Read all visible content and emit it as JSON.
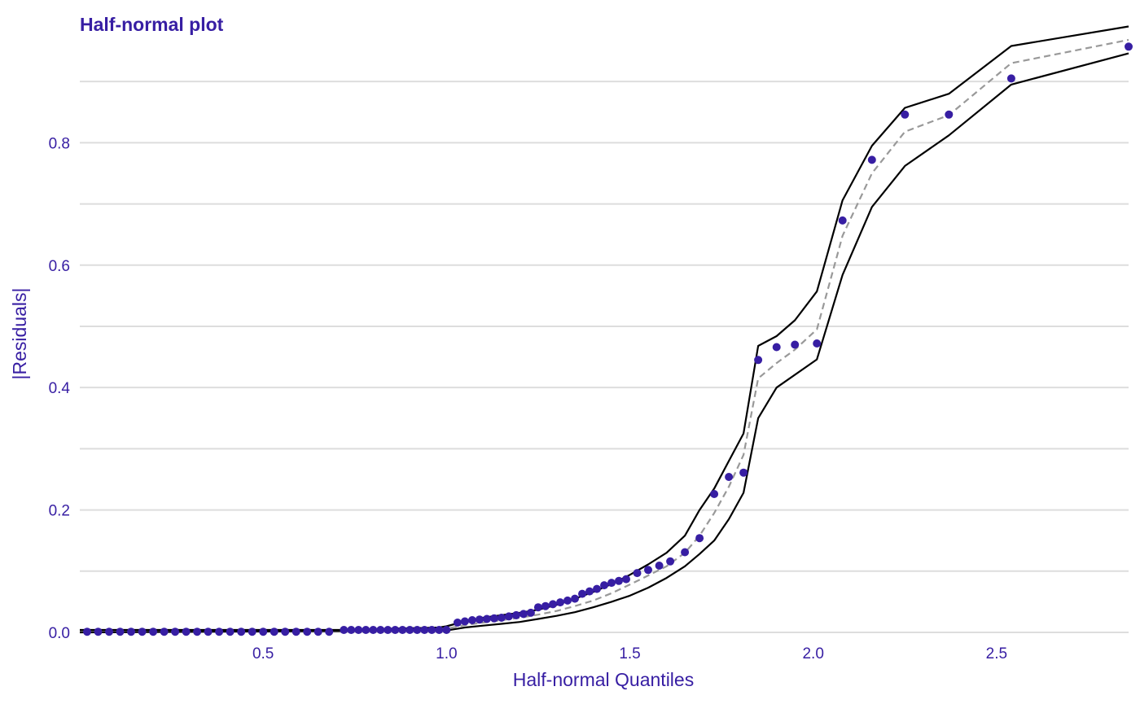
{
  "colors": {
    "text": "#371ea3",
    "points": "#371ea3",
    "envelope": "#000000",
    "median": "#999999",
    "grid": "#dddddd"
  },
  "chart_data": {
    "type": "scatter",
    "title": "Half-normal plot",
    "xlabel": "Half-normal Quantiles",
    "ylabel": "|Residuals|",
    "xlim": [
      0.0,
      2.86
    ],
    "ylim": [
      0.0,
      0.98
    ],
    "x_ticks": [
      {
        "value": 0.5,
        "label": "0.5"
      },
      {
        "value": 1.0,
        "label": "1.0"
      },
      {
        "value": 1.5,
        "label": "1.5"
      },
      {
        "value": 2.0,
        "label": "2.0"
      },
      {
        "value": 2.5,
        "label": "2.5"
      }
    ],
    "y_ticks": [
      {
        "value": 0.0,
        "label": "0.0"
      },
      {
        "value": 0.2,
        "label": "0.2"
      },
      {
        "value": 0.4,
        "label": "0.4"
      },
      {
        "value": 0.6,
        "label": "0.6"
      },
      {
        "value": 0.8,
        "label": "0.8"
      }
    ],
    "y_minor_grid": [
      0.1,
      0.3,
      0.5,
      0.7,
      0.9
    ],
    "grid": "horizontal",
    "legend": "none",
    "points": {
      "x": [
        0.02,
        0.05,
        0.08,
        0.11,
        0.14,
        0.17,
        0.2,
        0.23,
        0.26,
        0.29,
        0.32,
        0.35,
        0.38,
        0.41,
        0.44,
        0.47,
        0.5,
        0.53,
        0.56,
        0.59,
        0.62,
        0.65,
        0.68,
        0.72,
        0.74,
        0.76,
        0.78,
        0.8,
        0.82,
        0.84,
        0.86,
        0.88,
        0.9,
        0.92,
        0.94,
        0.96,
        0.98,
        1.0,
        1.03,
        1.05,
        1.07,
        1.09,
        1.11,
        1.13,
        1.15,
        1.17,
        1.19,
        1.21,
        1.23,
        1.25,
        1.27,
        1.29,
        1.31,
        1.33,
        1.35,
        1.37,
        1.39,
        1.41,
        1.43,
        1.45,
        1.47,
        1.49,
        1.52,
        1.55,
        1.58,
        1.61,
        1.65,
        1.69,
        1.73,
        1.77,
        1.81,
        1.85,
        1.9,
        1.95,
        2.01,
        2.08,
        2.16,
        2.25,
        2.37,
        2.54,
        2.86
      ],
      "y": [
        0.001,
        0.001,
        0.001,
        0.001,
        0.001,
        0.001,
        0.001,
        0.001,
        0.001,
        0.001,
        0.001,
        0.001,
        0.001,
        0.001,
        0.001,
        0.001,
        0.001,
        0.001,
        0.001,
        0.001,
        0.001,
        0.001,
        0.001,
        0.004,
        0.004,
        0.004,
        0.004,
        0.004,
        0.004,
        0.004,
        0.004,
        0.004,
        0.004,
        0.004,
        0.004,
        0.004,
        0.004,
        0.004,
        0.016,
        0.018,
        0.02,
        0.021,
        0.022,
        0.023,
        0.024,
        0.026,
        0.028,
        0.03,
        0.032,
        0.041,
        0.043,
        0.046,
        0.049,
        0.052,
        0.055,
        0.063,
        0.067,
        0.071,
        0.077,
        0.081,
        0.084,
        0.087,
        0.097,
        0.102,
        0.109,
        0.116,
        0.131,
        0.154,
        0.226,
        0.254,
        0.261,
        0.445,
        0.466,
        0.47,
        0.472,
        0.673,
        0.772,
        0.846,
        0.846,
        0.905,
        0.957
      ]
    },
    "envelope_upper": {
      "x": [
        0.0,
        0.72,
        0.98,
        1.0,
        1.05,
        1.1,
        1.15,
        1.2,
        1.25,
        1.3,
        1.35,
        1.4,
        1.45,
        1.5,
        1.55,
        1.6,
        1.65,
        1.69,
        1.73,
        1.77,
        1.81,
        1.85,
        1.9,
        1.95,
        2.01,
        2.08,
        2.16,
        2.25,
        2.37,
        2.54,
        2.86
      ],
      "y": [
        0.004,
        0.004,
        0.008,
        0.01,
        0.018,
        0.024,
        0.028,
        0.032,
        0.037,
        0.045,
        0.055,
        0.066,
        0.079,
        0.094,
        0.111,
        0.13,
        0.158,
        0.2,
        0.235,
        0.28,
        0.325,
        0.468,
        0.484,
        0.51,
        0.557,
        0.706,
        0.795,
        0.857,
        0.88,
        0.958,
        0.99
      ]
    },
    "envelope_lower": {
      "x": [
        0.0,
        1.0,
        1.05,
        1.1,
        1.15,
        1.2,
        1.25,
        1.3,
        1.35,
        1.4,
        1.45,
        1.5,
        1.55,
        1.6,
        1.65,
        1.69,
        1.73,
        1.77,
        1.81,
        1.85,
        1.9,
        2.01,
        2.08,
        2.16,
        2.25,
        2.37,
        2.54,
        2.86
      ],
      "y": [
        0.0,
        0.003,
        0.008,
        0.011,
        0.014,
        0.017,
        0.022,
        0.027,
        0.033,
        0.041,
        0.05,
        0.06,
        0.073,
        0.089,
        0.108,
        0.128,
        0.15,
        0.185,
        0.228,
        0.35,
        0.4,
        0.446,
        0.584,
        0.695,
        0.762,
        0.812,
        0.895,
        0.946
      ]
    },
    "envelope_median": {
      "x": [
        0.0,
        0.72,
        0.98,
        1.0,
        1.05,
        1.1,
        1.15,
        1.2,
        1.25,
        1.3,
        1.35,
        1.4,
        1.45,
        1.5,
        1.55,
        1.6,
        1.65,
        1.69,
        1.73,
        1.77,
        1.81,
        1.85,
        1.9,
        1.95,
        2.01,
        2.08,
        2.16,
        2.25,
        2.37,
        2.54,
        2.86
      ],
      "y": [
        0.002,
        0.002,
        0.004,
        0.006,
        0.012,
        0.016,
        0.02,
        0.024,
        0.029,
        0.035,
        0.043,
        0.052,
        0.064,
        0.078,
        0.093,
        0.108,
        0.13,
        0.158,
        0.195,
        0.238,
        0.29,
        0.415,
        0.44,
        0.462,
        0.495,
        0.648,
        0.75,
        0.818,
        0.845,
        0.93,
        0.968
      ]
    }
  }
}
